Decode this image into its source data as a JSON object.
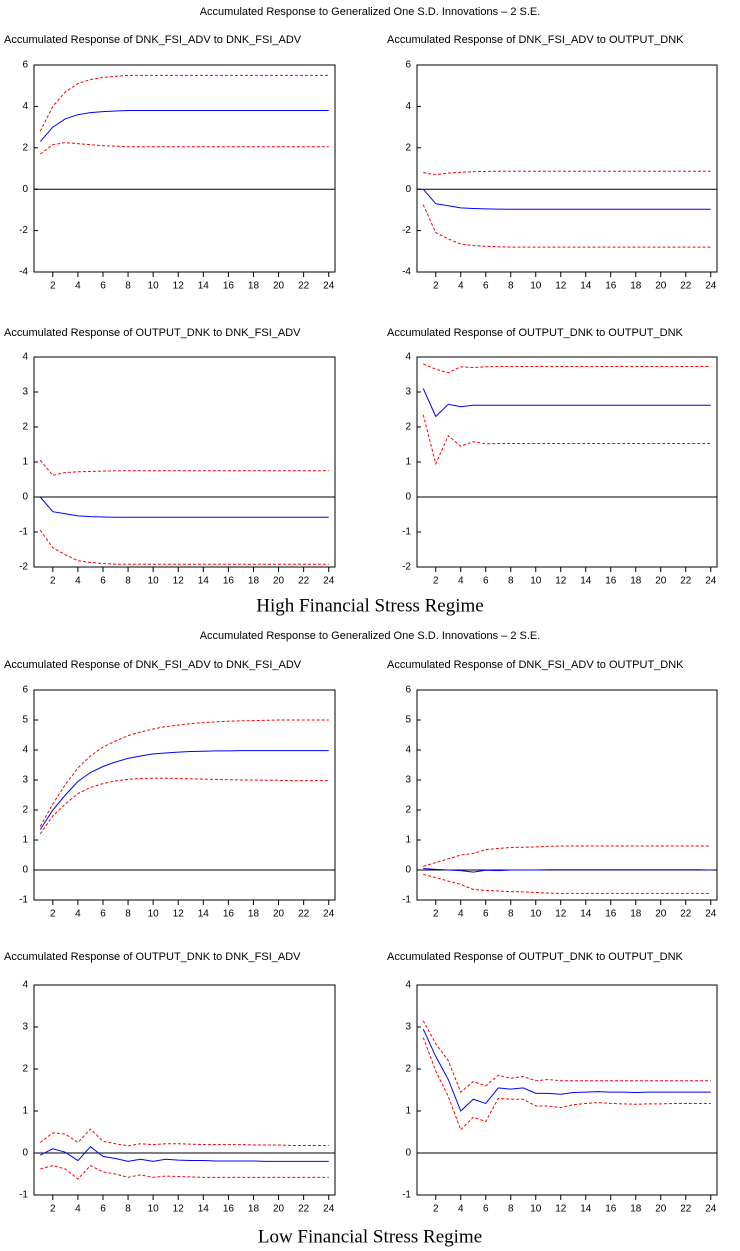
{
  "panels": [
    {
      "title": "Accumulated Response to Generalized One S.D. Innovations – 2 S.E.",
      "caption": "High Financial Stress Regime"
    },
    {
      "title": "Accumulated Response to Generalized One S.D. Innovations – 2 S.E.",
      "caption": "Low Financial Stress Regime"
    }
  ],
  "chart_data": [
    {
      "type": "line",
      "title": "Accumulated Response of DNK_FSI_ADV to DNK_FSI_ADV",
      "x": [
        1,
        2,
        3,
        4,
        5,
        6,
        7,
        8,
        9,
        10,
        11,
        12,
        13,
        14,
        15,
        16,
        17,
        18,
        19,
        20,
        21,
        22,
        23,
        24
      ],
      "xlim": [
        0.5,
        24.5
      ],
      "xticks": [
        2,
        4,
        6,
        8,
        10,
        12,
        14,
        16,
        18,
        20,
        22,
        24
      ],
      "ylim": [
        -4,
        6
      ],
      "yticks": [
        -4,
        -2,
        0,
        2,
        4,
        6
      ],
      "zero_line": true,
      "series": [
        {
          "color": "#0000ff",
          "dash": false,
          "values": [
            2.3,
            3.0,
            3.4,
            3.6,
            3.7,
            3.75,
            3.78,
            3.8,
            3.8,
            3.8,
            3.8,
            3.8,
            3.8,
            3.8,
            3.8,
            3.8,
            3.8,
            3.8,
            3.8,
            3.8,
            3.8,
            3.8,
            3.8,
            3.8
          ]
        },
        {
          "color": "#ff0000",
          "dash": true,
          "values": [
            2.8,
            4.0,
            4.7,
            5.1,
            5.3,
            5.4,
            5.45,
            5.5,
            5.5,
            5.5,
            5.5,
            5.5,
            5.5,
            5.5,
            5.5,
            5.5,
            5.5,
            5.5,
            5.5,
            5.5,
            5.5,
            5.5,
            5.5,
            5.5
          ]
        },
        {
          "color": "#ff0000",
          "dash": true,
          "values": [
            1.7,
            2.15,
            2.25,
            2.2,
            2.15,
            2.1,
            2.08,
            2.05,
            2.05,
            2.05,
            2.05,
            2.05,
            2.05,
            2.05,
            2.05,
            2.05,
            2.05,
            2.05,
            2.05,
            2.05,
            2.05,
            2.05,
            2.05,
            2.05
          ]
        }
      ]
    },
    {
      "type": "line",
      "title": "Accumulated Response of DNK_FSI_ADV to OUTPUT_DNK",
      "x": [
        1,
        2,
        3,
        4,
        5,
        6,
        7,
        8,
        9,
        10,
        11,
        12,
        13,
        14,
        15,
        16,
        17,
        18,
        19,
        20,
        21,
        22,
        23,
        24
      ],
      "xlim": [
        0.5,
        24.5
      ],
      "xticks": [
        2,
        4,
        6,
        8,
        10,
        12,
        14,
        16,
        18,
        20,
        22,
        24
      ],
      "ylim": [
        -4,
        6
      ],
      "yticks": [
        -4,
        -2,
        0,
        2,
        4,
        6
      ],
      "zero_line": true,
      "series": [
        {
          "color": "#0000ff",
          "dash": false,
          "values": [
            0,
            -0.7,
            -0.8,
            -0.9,
            -0.93,
            -0.95,
            -0.96,
            -0.97,
            -0.97,
            -0.97,
            -0.97,
            -0.97,
            -0.97,
            -0.97,
            -0.97,
            -0.97,
            -0.97,
            -0.97,
            -0.97,
            -0.97,
            -0.97,
            -0.97,
            -0.97,
            -0.97
          ]
        },
        {
          "color": "#ff0000",
          "dash": true,
          "values": [
            0.8,
            0.7,
            0.78,
            0.82,
            0.85,
            0.86,
            0.87,
            0.87,
            0.87,
            0.87,
            0.87,
            0.87,
            0.87,
            0.87,
            0.87,
            0.87,
            0.87,
            0.87,
            0.87,
            0.87,
            0.87,
            0.87,
            0.87,
            0.87
          ]
        },
        {
          "color": "#ff0000",
          "dash": true,
          "values": [
            -0.75,
            -2.1,
            -2.4,
            -2.65,
            -2.72,
            -2.76,
            -2.78,
            -2.8,
            -2.8,
            -2.8,
            -2.8,
            -2.8,
            -2.8,
            -2.8,
            -2.8,
            -2.8,
            -2.8,
            -2.8,
            -2.8,
            -2.8,
            -2.8,
            -2.8,
            -2.8,
            -2.8
          ]
        }
      ]
    },
    {
      "type": "line",
      "title": "Accumulated Response of OUTPUT_DNK to DNK_FSI_ADV",
      "x": [
        1,
        2,
        3,
        4,
        5,
        6,
        7,
        8,
        9,
        10,
        11,
        12,
        13,
        14,
        15,
        16,
        17,
        18,
        19,
        20,
        21,
        22,
        23,
        24
      ],
      "xlim": [
        0.5,
        24.5
      ],
      "xticks": [
        2,
        4,
        6,
        8,
        10,
        12,
        14,
        16,
        18,
        20,
        22,
        24
      ],
      "ylim": [
        -2,
        4
      ],
      "yticks": [
        -2,
        -1,
        0,
        1,
        2,
        3,
        4
      ],
      "zero_line": true,
      "series": [
        {
          "color": "#0000ff",
          "dash": false,
          "values": [
            0,
            -0.42,
            -0.48,
            -0.54,
            -0.56,
            -0.57,
            -0.58,
            -0.58,
            -0.58,
            -0.58,
            -0.58,
            -0.58,
            -0.58,
            -0.58,
            -0.58,
            -0.58,
            -0.58,
            -0.58,
            -0.58,
            -0.58,
            -0.58,
            -0.58,
            -0.58,
            -0.58
          ]
        },
        {
          "color": "#ff0000",
          "dash": true,
          "values": [
            1.05,
            0.62,
            0.7,
            0.72,
            0.73,
            0.74,
            0.75,
            0.75,
            0.75,
            0.75,
            0.75,
            0.75,
            0.75,
            0.75,
            0.75,
            0.75,
            0.75,
            0.75,
            0.75,
            0.75,
            0.75,
            0.75,
            0.75,
            0.75
          ]
        },
        {
          "color": "#ff0000",
          "dash": true,
          "values": [
            -0.95,
            -1.45,
            -1.65,
            -1.82,
            -1.87,
            -1.9,
            -1.92,
            -1.92,
            -1.92,
            -1.92,
            -1.92,
            -1.92,
            -1.92,
            -1.92,
            -1.92,
            -1.92,
            -1.92,
            -1.92,
            -1.92,
            -1.92,
            -1.92,
            -1.92,
            -1.92,
            -1.92
          ]
        }
      ]
    },
    {
      "type": "line",
      "title": "Accumulated Response of OUTPUT_DNK to OUTPUT_DNK",
      "x": [
        1,
        2,
        3,
        4,
        5,
        6,
        7,
        8,
        9,
        10,
        11,
        12,
        13,
        14,
        15,
        16,
        17,
        18,
        19,
        20,
        21,
        22,
        23,
        24
      ],
      "xlim": [
        0.5,
        24.5
      ],
      "xticks": [
        2,
        4,
        6,
        8,
        10,
        12,
        14,
        16,
        18,
        20,
        22,
        24
      ],
      "ylim": [
        -2,
        4
      ],
      "yticks": [
        -2,
        -1,
        0,
        1,
        2,
        3,
        4
      ],
      "zero_line": true,
      "series": [
        {
          "color": "#0000ff",
          "dash": false,
          "values": [
            3.1,
            2.3,
            2.65,
            2.58,
            2.62,
            2.62,
            2.62,
            2.62,
            2.62,
            2.62,
            2.62,
            2.62,
            2.62,
            2.62,
            2.62,
            2.62,
            2.62,
            2.62,
            2.62,
            2.62,
            2.62,
            2.62,
            2.62,
            2.62
          ]
        },
        {
          "color": "#ff0000",
          "dash": true,
          "values": [
            3.8,
            3.65,
            3.55,
            3.72,
            3.7,
            3.72,
            3.73,
            3.73,
            3.73,
            3.73,
            3.73,
            3.73,
            3.73,
            3.73,
            3.73,
            3.73,
            3.73,
            3.73,
            3.73,
            3.73,
            3.73,
            3.73,
            3.73,
            3.73
          ]
        },
        {
          "color": "#ff0000",
          "dash": true,
          "values": [
            2.35,
            0.95,
            1.75,
            1.45,
            1.58,
            1.52,
            1.53,
            1.53,
            1.53,
            1.53,
            1.53,
            1.53,
            1.53,
            1.53,
            1.53,
            1.53,
            1.53,
            1.53,
            1.53,
            1.53,
            1.53,
            1.53,
            1.53,
            1.53
          ]
        }
      ]
    },
    {
      "type": "line",
      "title": "Accumulated Response of DNK_FSI_ADV to DNK_FSI_ADV",
      "x": [
        1,
        2,
        3,
        4,
        5,
        6,
        7,
        8,
        9,
        10,
        11,
        12,
        13,
        14,
        15,
        16,
        17,
        18,
        19,
        20,
        21,
        22,
        23,
        24
      ],
      "xlim": [
        0.5,
        24.5
      ],
      "xticks": [
        2,
        4,
        6,
        8,
        10,
        12,
        14,
        16,
        18,
        20,
        22,
        24
      ],
      "ylim": [
        -1,
        6
      ],
      "yticks": [
        -1,
        0,
        1,
        2,
        3,
        4,
        5,
        6
      ],
      "zero_line": true,
      "series": [
        {
          "color": "#0000ff",
          "dash": false,
          "values": [
            1.35,
            2.0,
            2.5,
            2.95,
            3.25,
            3.45,
            3.6,
            3.72,
            3.8,
            3.87,
            3.9,
            3.93,
            3.95,
            3.96,
            3.97,
            3.97,
            3.98,
            3.98,
            3.98,
            3.98,
            3.98,
            3.98,
            3.98,
            3.98
          ]
        },
        {
          "color": "#ff0000",
          "dash": true,
          "values": [
            1.45,
            2.2,
            2.85,
            3.4,
            3.8,
            4.1,
            4.3,
            4.48,
            4.6,
            4.7,
            4.78,
            4.83,
            4.88,
            4.91,
            4.94,
            4.96,
            4.97,
            4.98,
            4.99,
            5,
            5,
            5,
            5,
            5
          ]
        },
        {
          "color": "#ff0000",
          "dash": true,
          "values": [
            1.2,
            1.8,
            2.2,
            2.55,
            2.75,
            2.88,
            2.97,
            3.02,
            3.05,
            3.06,
            3.06,
            3.05,
            3.04,
            3.03,
            3.02,
            3.01,
            3.0,
            3.0,
            2.99,
            2.99,
            2.98,
            2.98,
            2.98,
            2.98
          ]
        }
      ]
    },
    {
      "type": "line",
      "title": "Accumulated Response of DNK_FSI_ADV to OUTPUT_DNK",
      "x": [
        1,
        2,
        3,
        4,
        5,
        6,
        7,
        8,
        9,
        10,
        11,
        12,
        13,
        14,
        15,
        16,
        17,
        18,
        19,
        20,
        21,
        22,
        23,
        24
      ],
      "xlim": [
        0.5,
        24.5
      ],
      "xticks": [
        2,
        4,
        6,
        8,
        10,
        12,
        14,
        16,
        18,
        20,
        22,
        24
      ],
      "ylim": [
        -1,
        6
      ],
      "yticks": [
        -1,
        0,
        1,
        2,
        3,
        4,
        5,
        6
      ],
      "zero_line": true,
      "series": [
        {
          "color": "#0000ff",
          "dash": false,
          "values": [
            0.05,
            0.02,
            0,
            -0.02,
            -0.07,
            -0.01,
            -0.02,
            0,
            0,
            0,
            0.01,
            0.01,
            0.01,
            0.01,
            0.01,
            0.01,
            0.01,
            0.01,
            0.01,
            0.01,
            0.01,
            0.01,
            0.01,
            0
          ]
        },
        {
          "color": "#ff0000",
          "dash": true,
          "values": [
            0.12,
            0.25,
            0.37,
            0.5,
            0.55,
            0.68,
            0.72,
            0.75,
            0.76,
            0.77,
            0.79,
            0.8,
            0.8,
            0.8,
            0.8,
            0.8,
            0.8,
            0.8,
            0.8,
            0.8,
            0.8,
            0.8,
            0.8,
            0.8
          ]
        },
        {
          "color": "#ff0000",
          "dash": true,
          "values": [
            -0.15,
            -0.25,
            -0.37,
            -0.48,
            -0.65,
            -0.68,
            -0.7,
            -0.72,
            -0.73,
            -0.75,
            -0.77,
            -0.78,
            -0.78,
            -0.78,
            -0.78,
            -0.78,
            -0.78,
            -0.78,
            -0.78,
            -0.78,
            -0.78,
            -0.78,
            -0.78,
            -0.78
          ]
        }
      ]
    },
    {
      "type": "line",
      "title": "Accumulated Response of OUTPUT_DNK to DNK_FSI_ADV",
      "x": [
        1,
        2,
        3,
        4,
        5,
        6,
        7,
        8,
        9,
        10,
        11,
        12,
        13,
        14,
        15,
        16,
        17,
        18,
        19,
        20,
        21,
        22,
        23,
        24
      ],
      "xlim": [
        0.5,
        24.5
      ],
      "xticks": [
        2,
        4,
        6,
        8,
        10,
        12,
        14,
        16,
        18,
        20,
        22,
        24
      ],
      "ylim": [
        -1,
        4
      ],
      "yticks": [
        -1,
        0,
        1,
        2,
        3,
        4
      ],
      "zero_line": true,
      "series": [
        {
          "color": "#0000ff",
          "dash": false,
          "values": [
            -0.05,
            0.1,
            0.02,
            -0.18,
            0.15,
            -0.08,
            -0.13,
            -0.2,
            -0.15,
            -0.2,
            -0.15,
            -0.17,
            -0.18,
            -0.18,
            -0.19,
            -0.19,
            -0.19,
            -0.19,
            -0.2,
            -0.2,
            -0.2,
            -0.2,
            -0.2,
            -0.2
          ]
        },
        {
          "color": "#ff0000",
          "dash": true,
          "values": [
            0.25,
            0.48,
            0.45,
            0.25,
            0.57,
            0.28,
            0.22,
            0.17,
            0.22,
            0.2,
            0.22,
            0.22,
            0.21,
            0.2,
            0.2,
            0.2,
            0.2,
            0.19,
            0.19,
            0.19,
            0.18,
            0.18,
            0.18,
            0.18
          ]
        },
        {
          "color": "#ff0000",
          "dash": true,
          "values": [
            -0.38,
            -0.3,
            -0.38,
            -0.62,
            -0.3,
            -0.45,
            -0.5,
            -0.58,
            -0.52,
            -0.58,
            -0.55,
            -0.56,
            -0.57,
            -0.58,
            -0.58,
            -0.58,
            -0.58,
            -0.58,
            -0.58,
            -0.58,
            -0.58,
            -0.58,
            -0.58,
            -0.58
          ]
        }
      ]
    },
    {
      "type": "line",
      "title": "Accumulated Response of OUTPUT_DNK to OUTPUT_DNK",
      "x": [
        1,
        2,
        3,
        4,
        5,
        6,
        7,
        8,
        9,
        10,
        11,
        12,
        13,
        14,
        15,
        16,
        17,
        18,
        19,
        20,
        21,
        22,
        23,
        24
      ],
      "xlim": [
        0.5,
        24.5
      ],
      "xticks": [
        2,
        4,
        6,
        8,
        10,
        12,
        14,
        16,
        18,
        20,
        22,
        24
      ],
      "ylim": [
        -1,
        4
      ],
      "yticks": [
        -1,
        0,
        1,
        2,
        3,
        4
      ],
      "zero_line": true,
      "series": [
        {
          "color": "#0000ff",
          "dash": false,
          "values": [
            2.95,
            2.3,
            1.75,
            1.0,
            1.28,
            1.18,
            1.55,
            1.52,
            1.55,
            1.42,
            1.42,
            1.4,
            1.44,
            1.45,
            1.46,
            1.45,
            1.45,
            1.44,
            1.45,
            1.45,
            1.45,
            1.45,
            1.45,
            1.45
          ]
        },
        {
          "color": "#ff0000",
          "dash": true,
          "values": [
            3.15,
            2.6,
            2.2,
            1.45,
            1.7,
            1.6,
            1.85,
            1.78,
            1.82,
            1.72,
            1.75,
            1.72,
            1.72,
            1.72,
            1.72,
            1.72,
            1.72,
            1.72,
            1.72,
            1.72,
            1.72,
            1.72,
            1.72,
            1.72
          ]
        },
        {
          "color": "#ff0000",
          "dash": true,
          "values": [
            2.75,
            1.95,
            1.35,
            0.55,
            0.85,
            0.75,
            1.3,
            1.28,
            1.28,
            1.12,
            1.12,
            1.08,
            1.15,
            1.18,
            1.2,
            1.18,
            1.17,
            1.16,
            1.17,
            1.17,
            1.18,
            1.18,
            1.18,
            1.18
          ]
        }
      ]
    }
  ]
}
